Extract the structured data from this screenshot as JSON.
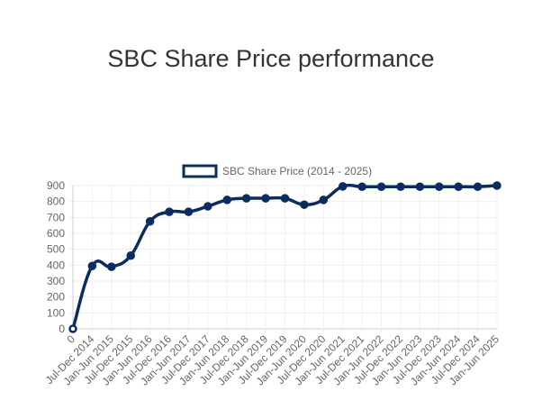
{
  "title": "SBC Share Price performance",
  "chart_data": {
    "type": "line",
    "title": "SBC Share Price performance",
    "legend": {
      "label": "SBC Share Price (2014 - 2025)",
      "placement": "top"
    },
    "categories": [
      "0",
      "Jul-Dec 2014",
      "Jan-Jun 2015",
      "Jul-Dec 2015",
      "Jan-Jun 2016",
      "Jul-Dec 2016",
      "Jan-Jun 2017",
      "Jul-Dec 2017",
      "Jan-Jun 2018",
      "Jul-Dec 2018",
      "Jan-Jun 2019",
      "Jul-Dec 2019",
      "Jan-Jun 2020",
      "Jul-Dec 2020",
      "Jan-Jun 2021",
      "Jul-Dec 2021",
      "Jan-Jun 2022",
      "Jul-Dec 2022",
      "Jan-Jun 2023",
      "Jul-Dec 2023",
      "Jan-Jun 2024",
      "Jul-Dec 2024",
      "Jan-Jun 2025"
    ],
    "series": [
      {
        "name": "SBC Share Price (2014 - 2025)",
        "values": [
          0,
          395,
          390,
          460,
          675,
          735,
          735,
          770,
          810,
          820,
          820,
          820,
          780,
          810,
          895,
          893,
          893,
          893,
          893,
          893,
          893,
          893,
          900
        ]
      }
    ],
    "ylim": [
      0,
      900
    ],
    "yticks": [
      0,
      100,
      200,
      300,
      400,
      500,
      600,
      700,
      800,
      900
    ],
    "grid": true,
    "color": "#0b2c5f"
  }
}
